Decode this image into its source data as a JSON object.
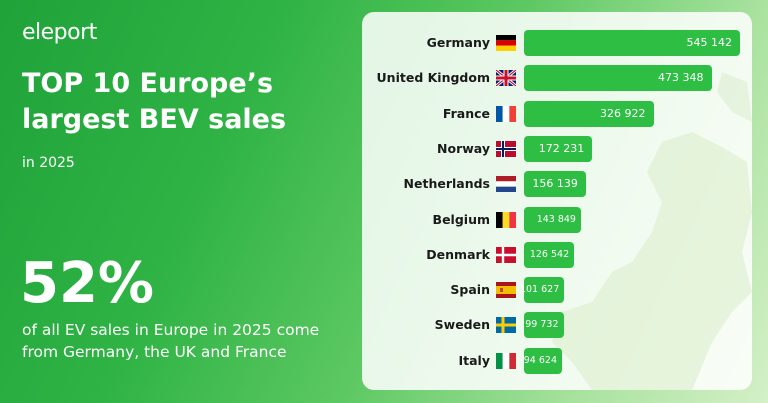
{
  "brand": {
    "logo_text": "eleport"
  },
  "headline": {
    "title": "TOP 10 Europe’s largest BEV sales",
    "subtitle": "in 2025"
  },
  "highlight": {
    "percent": "52%",
    "caption": "of all EV sales in Europe in 2025 come from Germany, the UK and France"
  },
  "colors": {
    "bar": "#2dbe43",
    "background_start": "#1fa33a",
    "background_end": "#d4f0c7",
    "card": "#ffffff"
  },
  "chart_data": {
    "type": "bar",
    "orientation": "horizontal",
    "categories": [
      "Germany",
      "United Kingdom",
      "France",
      "Norway",
      "Netherlands",
      "Belgium",
      "Denmark",
      "Spain",
      "Sweden",
      "Italy"
    ],
    "values": [
      545142,
      473348,
      326922,
      172231,
      156139,
      143849,
      126542,
      101627,
      99732,
      94624
    ],
    "value_labels": [
      "545 142",
      "473 348",
      "326 922",
      "172 231",
      "156 139",
      "143 849",
      "126 542",
      "101 627",
      "99 732",
      "94 624"
    ],
    "flags": [
      "germany-flag",
      "united-kingdom-flag",
      "france-flag",
      "norway-flag",
      "netherlands-flag",
      "belgium-flag",
      "denmark-flag",
      "spain-flag",
      "sweden-flag",
      "italy-flag"
    ],
    "title": "",
    "xlabel": "",
    "ylabel": "",
    "grid": false,
    "legend": "none",
    "data_labels": "inside-end"
  }
}
